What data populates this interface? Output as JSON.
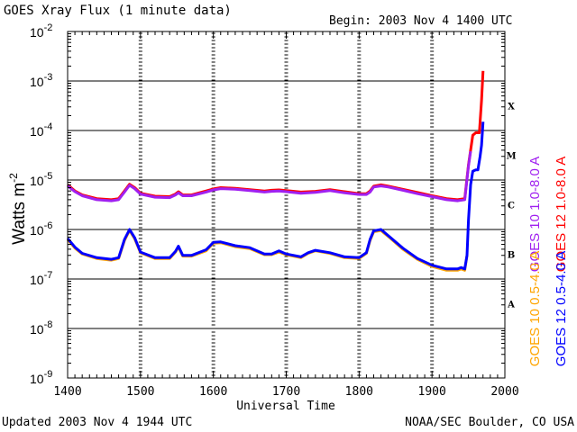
{
  "header": {
    "title": "GOES Xray Flux (1 minute data)",
    "begin": "Begin: 2003 Nov  4 1400 UTC"
  },
  "footer": {
    "updated": "Updated 2003 Nov  4 1944 UTC",
    "credit": "NOAA/SEC Boulder, CO USA"
  },
  "chart_data": {
    "type": "line",
    "title": "GOES Xray Flux (1 minute data)",
    "xlabel": "Universal Time",
    "ylabel": "Watts m-2",
    "ylabel_main": "Watts m",
    "ylabel_sup": "-2",
    "xlim": [
      1400,
      2000
    ],
    "ylim": [
      1e-09,
      0.01
    ],
    "y_scale": "log",
    "x_ticks": [
      "1400",
      "1500",
      "1600",
      "1700",
      "1800",
      "1900",
      "2000"
    ],
    "y_ticks": [
      {
        "base": "10",
        "exp": "-9"
      },
      {
        "base": "10",
        "exp": "-8"
      },
      {
        "base": "10",
        "exp": "-7"
      },
      {
        "base": "10",
        "exp": "-6"
      },
      {
        "base": "10",
        "exp": "-5"
      },
      {
        "base": "10",
        "exp": "-4"
      },
      {
        "base": "10",
        "exp": "-3"
      },
      {
        "base": "10",
        "exp": "-2"
      }
    ],
    "flare_classes": [
      "A",
      "B",
      "C",
      "M",
      "X"
    ],
    "grid": "horizontal lines at each decade from 1e-8 to 1e-3; dotted vertical markers at each hour",
    "legend_right": [
      {
        "label": "GOES 10 1.0-8.0 A",
        "color": "#a020f0"
      },
      {
        "label": "GOES 12 1.0-8.0 A",
        "color": "#ff0000"
      }
    ],
    "legend_right_lower": [
      {
        "label": "GOES 10 0.5-4.0 A",
        "color": "#ffa500"
      },
      {
        "label": "GOES 12 0.5-4.0 A",
        "color": "#0000ff"
      }
    ],
    "series": [
      {
        "name": "GOES 12 1.0-8.0 A",
        "color": "#ff0000",
        "x": [
          1400,
          1410,
          1420,
          1440,
          1460,
          1470,
          1478,
          1485,
          1492,
          1500,
          1520,
          1540,
          1548,
          1552,
          1558,
          1570,
          1590,
          1600,
          1610,
          1630,
          1650,
          1670,
          1680,
          1690,
          1700,
          1720,
          1730,
          1740,
          1760,
          1780,
          1800,
          1810,
          1815,
          1820,
          1830,
          1840,
          1860,
          1880,
          1900,
          1920,
          1935,
          1945,
          1950,
          1953,
          1956,
          1960,
          1965,
          1968,
          1970
        ],
        "y": [
          8e-06,
          6e-06,
          5e-06,
          4.2e-06,
          4e-06,
          4.2e-06,
          6e-06,
          8.2e-06,
          7e-06,
          5.4e-06,
          4.7e-06,
          4.6e-06,
          5.2e-06,
          5.8e-06,
          5e-06,
          5e-06,
          6e-06,
          6.6e-06,
          7e-06,
          6.8e-06,
          6.4e-06,
          6e-06,
          6.2e-06,
          6.3e-06,
          6.1e-06,
          5.7e-06,
          5.8e-06,
          5.9e-06,
          6.4e-06,
          5.8e-06,
          5.3e-06,
          5.3e-06,
          6e-06,
          7.5e-06,
          8e-06,
          7.5e-06,
          6.5e-06,
          5.6e-06,
          4.8e-06,
          4.2e-06,
          4e-06,
          4.2e-06,
          2e-05,
          4e-05,
          8e-05,
          9e-05,
          9e-05,
          0.0004,
          0.0016
        ]
      },
      {
        "name": "GOES 10 1.0-8.0 A",
        "color": "#a020f0",
        "x": [
          1400,
          1410,
          1420,
          1440,
          1460,
          1470,
          1478,
          1485,
          1492,
          1500,
          1520,
          1540,
          1548,
          1552,
          1558,
          1570,
          1590,
          1600,
          1610,
          1630,
          1650,
          1670,
          1680,
          1690,
          1700,
          1720,
          1730,
          1740,
          1760,
          1780,
          1800,
          1810,
          1815,
          1820,
          1830,
          1840,
          1860,
          1880,
          1900,
          1920,
          1935,
          1945,
          1950,
          1953
        ],
        "y": [
          7.6e-06,
          5.8e-06,
          4.8e-06,
          4e-06,
          3.8e-06,
          4e-06,
          5.7e-06,
          7.8e-06,
          6.7e-06,
          5.2e-06,
          4.5e-06,
          4.4e-06,
          5e-06,
          5.5e-06,
          4.8e-06,
          4.8e-06,
          5.7e-06,
          6.3e-06,
          6.7e-06,
          6.5e-06,
          6.1e-06,
          5.7e-06,
          5.9e-06,
          6e-06,
          5.8e-06,
          5.4e-06,
          5.5e-06,
          5.6e-06,
          6.1e-06,
          5.5e-06,
          5.1e-06,
          5.1e-06,
          5.7e-06,
          7.2e-06,
          7.6e-06,
          7.2e-06,
          6.2e-06,
          5.3e-06,
          4.6e-06,
          4e-06,
          3.8e-06,
          4e-06,
          1.9e-05,
          3.8e-05
        ]
      },
      {
        "name": "GOES 10 0.5-4.0 A",
        "color": "#ffa500",
        "x": [
          1400,
          1410,
          1420,
          1440,
          1460,
          1470,
          1478,
          1485,
          1492,
          1500,
          1520,
          1540,
          1548,
          1552,
          1558,
          1570,
          1590,
          1600,
          1610,
          1630,
          1650,
          1670,
          1680,
          1690,
          1700,
          1720,
          1730,
          1740,
          1760,
          1780,
          1800,
          1810,
          1815,
          1820,
          1830,
          1840,
          1860,
          1880,
          1900,
          1920,
          1935,
          1940,
          1945,
          1948
        ],
        "y": [
          6.3e-07,
          4.2e-07,
          3.2e-07,
          2.6e-07,
          2.4e-07,
          2.6e-07,
          6e-07,
          9.6e-07,
          6.5e-07,
          3.4e-07,
          2.6e-07,
          2.6e-07,
          3.5e-07,
          4.4e-07,
          2.9e-07,
          2.9e-07,
          3.7e-07,
          5.3e-07,
          5.4e-07,
          4.5e-07,
          4.1e-07,
          3.1e-07,
          3.1e-07,
          3.5e-07,
          3.1e-07,
          2.7e-07,
          3.3e-07,
          3.7e-07,
          3.3e-07,
          2.7e-07,
          2.6e-07,
          3.3e-07,
          6e-07,
          9e-07,
          9.5e-07,
          7.2e-07,
          4e-07,
          2.5e-07,
          1.8e-07,
          1.5e-07,
          1.5e-07,
          1.6e-07,
          1.5e-07,
          3e-07
        ]
      },
      {
        "name": "GOES 12 0.5-4.0 A",
        "color": "#0000ff",
        "x": [
          1400,
          1410,
          1420,
          1440,
          1460,
          1470,
          1478,
          1485,
          1492,
          1500,
          1520,
          1540,
          1548,
          1552,
          1558,
          1570,
          1590,
          1600,
          1610,
          1630,
          1650,
          1670,
          1680,
          1690,
          1700,
          1720,
          1730,
          1740,
          1760,
          1780,
          1800,
          1810,
          1815,
          1820,
          1830,
          1840,
          1860,
          1880,
          1900,
          1920,
          1935,
          1940,
          1945,
          1948,
          1950,
          1953,
          1956,
          1960,
          1963,
          1966,
          1968,
          1970
        ],
        "y": [
          6.6e-07,
          4.4e-07,
          3.3e-07,
          2.7e-07,
          2.5e-07,
          2.7e-07,
          6.3e-07,
          1e-06,
          6.8e-07,
          3.5e-07,
          2.7e-07,
          2.7e-07,
          3.6e-07,
          4.6e-07,
          3e-07,
          3e-07,
          3.9e-07,
          5.5e-07,
          5.6e-07,
          4.7e-07,
          4.3e-07,
          3.2e-07,
          3.2e-07,
          3.7e-07,
          3.2e-07,
          2.8e-07,
          3.4e-07,
          3.8e-07,
          3.4e-07,
          2.8e-07,
          2.7e-07,
          3.4e-07,
          6.3e-07,
          9.4e-07,
          1e-06,
          7.5e-07,
          4.2e-07,
          2.6e-07,
          1.9e-07,
          1.6e-07,
          1.6e-07,
          1.7e-07,
          1.6e-07,
          3e-07,
          1.5e-06,
          8e-06,
          1.5e-05,
          1.6e-05,
          1.6e-05,
          3e-05,
          5e-05,
          0.00015
        ]
      }
    ]
  }
}
